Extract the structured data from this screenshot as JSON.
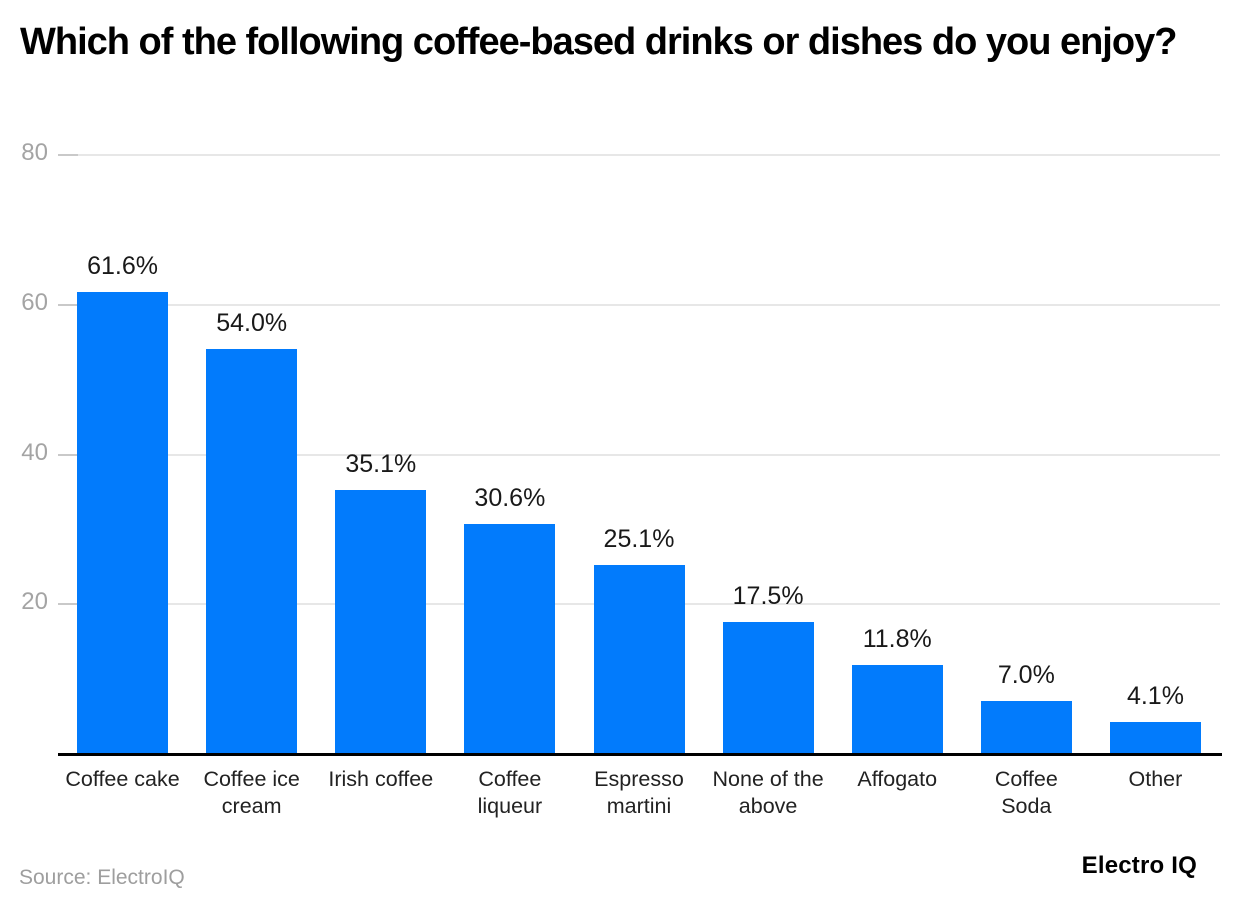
{
  "title": "Which of the following coffee-based drinks or dishes do you enjoy?",
  "footer": {
    "source": "Source: ElectroIQ",
    "brand": "Electro IQ"
  },
  "colors": {
    "bar": "#027bfc",
    "grid": "#e7e7e7",
    "tick_stub": "#c9c9c9",
    "axis_label": "#a4a4a4",
    "baseline": "#000000"
  },
  "chart_data": {
    "type": "bar",
    "title": "Which of the following coffee-based drinks or dishes do you enjoy?",
    "categories": [
      "Coffee cake",
      "Coffee ice cream",
      "Irish coffee",
      "Coffee liqueur",
      "Espresso martini",
      "None of the above",
      "Affogato",
      "Coffee Soda",
      "Other"
    ],
    "values": [
      61.6,
      54.0,
      35.1,
      30.6,
      25.1,
      17.5,
      11.8,
      7.0,
      4.1
    ],
    "value_labels": [
      "61.6%",
      "54.0%",
      "35.1%",
      "30.6%",
      "25.1%",
      "17.5%",
      "11.8%",
      "7.0%",
      "4.1%"
    ],
    "xlabel": "",
    "ylabel": "",
    "ylim": [
      0,
      80
    ],
    "yticks": [
      20,
      40,
      60,
      80
    ],
    "grid": true,
    "legend": false,
    "source": "Source: ElectroIQ",
    "unit": "%"
  }
}
